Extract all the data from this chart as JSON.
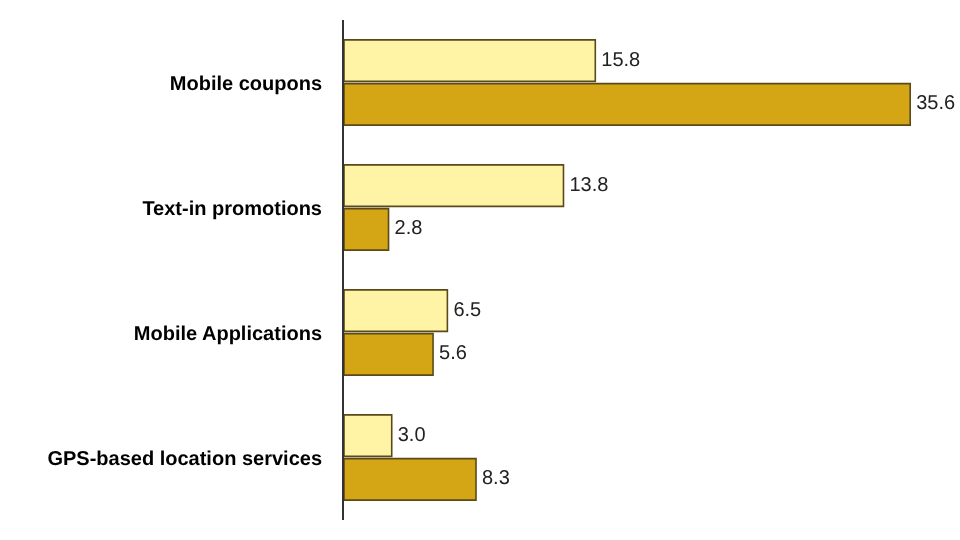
{
  "chart_data": {
    "type": "bar",
    "orientation": "horizontal",
    "categories": [
      "Mobile coupons",
      "Text-in promotions",
      "Mobile Applications",
      "GPS-based location services"
    ],
    "series": [
      {
        "color": "#fff3a6",
        "values": [
          15.8,
          13.8,
          6.5,
          3.0
        ],
        "value_labels": [
          "15.8",
          "13.8",
          "6.5",
          "3.0"
        ]
      },
      {
        "color": "#d4a514",
        "values": [
          35.6,
          2.8,
          5.6,
          8.3
        ],
        "value_labels": [
          "35.6",
          "2.8",
          "5.6",
          "8.3"
        ]
      }
    ],
    "tick_labels": "y"
  }
}
